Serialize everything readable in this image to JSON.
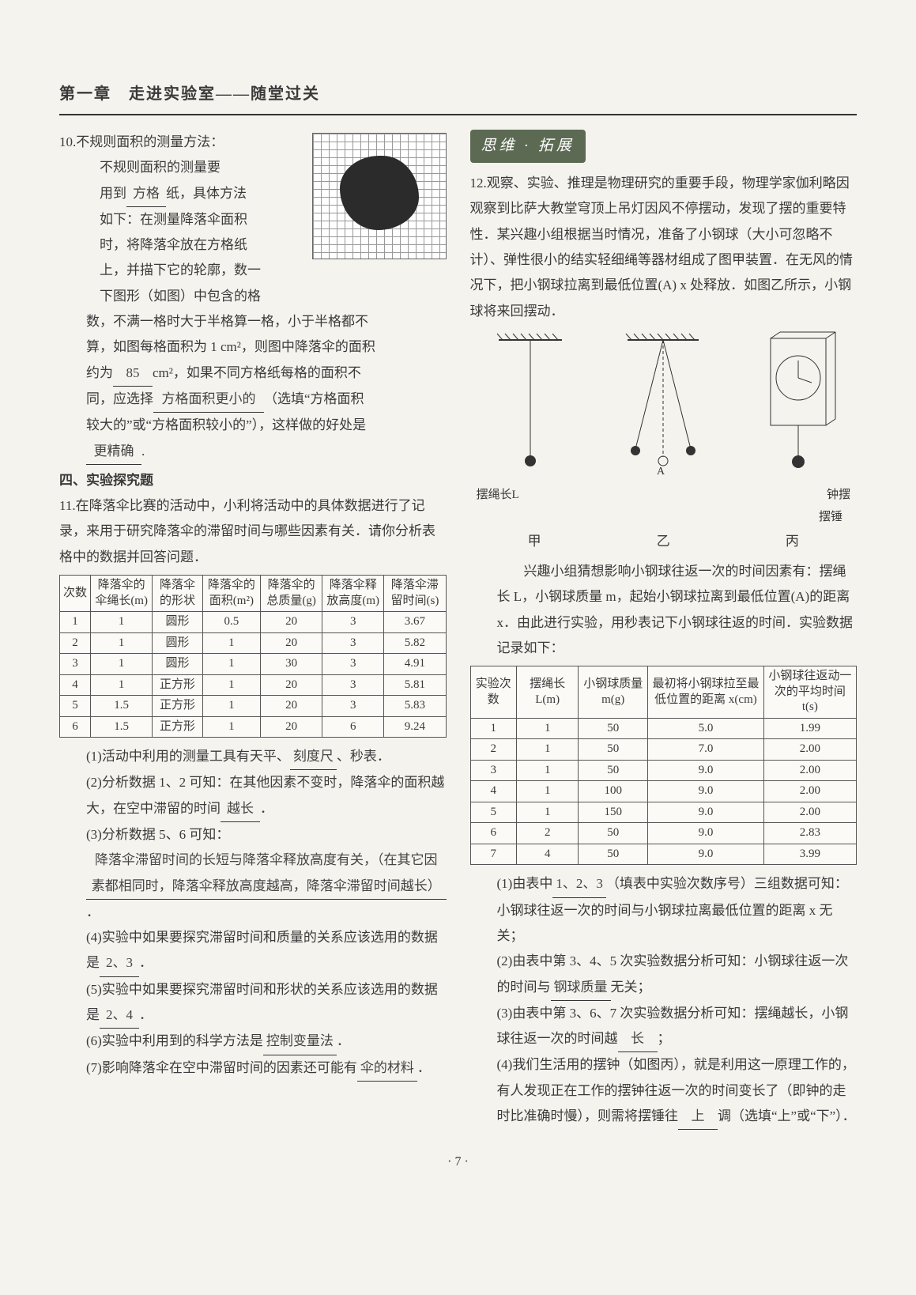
{
  "header": {
    "title": "第一章　走进实验室——随堂过关"
  },
  "colors": {
    "page_bg": "#f5f3ee",
    "text": "#3a3a3a",
    "rule": "#333333",
    "table_border": "#555555",
    "badge_bg": "#5c6a53",
    "badge_fg": "#ffffff",
    "grid_line": "#999999",
    "blob": "#2b2b2b"
  },
  "q10": {
    "num": "10.",
    "title": "不规则面积的测量方法：",
    "lines": [
      "不规则面积的测量要",
      "用到",
      "方格",
      "纸，具体方法",
      "如下：在测量降落伞面积",
      "时，将降落伞放在方格纸",
      "上，并描下它的轮廓，数一",
      "下图形（如图）中包含的格"
    ],
    "after": [
      "数，不满一格时大于半格算一格，小于半格都不",
      "算，如图每格面积为 1 cm²，则图中降落伞的面积",
      "约为",
      "85",
      "cm²，如果不同方格纸每格的面积不",
      "同，应选择",
      "方格面积更小的",
      "（选填“方格面积",
      "较大的”或“方格面积较小的”），这样做的好处是",
      "",
      "更精确",
      "."
    ]
  },
  "sec4": "四、实验探究题",
  "q11": {
    "num": "11.",
    "intro": "在降落伞比赛的活动中，小利将活动中的具体数据进行了记录，来用于研究降落伞的滞留时间与哪些因素有关．请你分析表格中的数据并回答问题．",
    "table": {
      "headers": [
        "次数",
        "降落伞的伞绳长(m)",
        "降落伞的形状",
        "降落伞的面积(m²)",
        "降落伞的总质量(g)",
        "降落伞释放高度(m)",
        "降落伞滞留时间(s)"
      ],
      "rows": [
        [
          "1",
          "1",
          "圆形",
          "0.5",
          "20",
          "3",
          "3.67"
        ],
        [
          "2",
          "1",
          "圆形",
          "1",
          "20",
          "3",
          "5.82"
        ],
        [
          "3",
          "1",
          "圆形",
          "1",
          "30",
          "3",
          "4.91"
        ],
        [
          "4",
          "1",
          "正方形",
          "1",
          "20",
          "3",
          "5.81"
        ],
        [
          "5",
          "1.5",
          "正方形",
          "1",
          "20",
          "3",
          "5.83"
        ],
        [
          "6",
          "1.5",
          "正方形",
          "1",
          "20",
          "6",
          "9.24"
        ]
      ],
      "col_widths_pct": [
        8,
        16,
        13,
        15,
        16,
        16,
        16
      ],
      "font_size_pt": 11
    },
    "subs": [
      {
        "n": "(1)",
        "pre": "活动中利用的测量工具有天平、",
        "blank": "刻度尺",
        "post": "、秒表．"
      },
      {
        "n": "(2)",
        "pre": "分析数据 1、2 可知：在其他因素不变时，降落伞的面积越大，在空中滞留的时间",
        "blank": "越长",
        "post": "．"
      },
      {
        "n": "(3)",
        "pre": "分析数据 5、6 可知：",
        "blank": "降落伞滞留时间的长短与降落伞释放高度有关，（在其它因素都相同时，降落伞释放高度越高，降落伞滞留时间越长）",
        "post": "．"
      },
      {
        "n": "(4)",
        "pre": "实验中如果要探究滞留时间和质量的关系应该选用的数据是",
        "blank": "2、3",
        "post": "．"
      },
      {
        "n": "(5)",
        "pre": "实验中如果要探究滞留时间和形状的关系应该选用的数据是",
        "blank": "2、4",
        "post": "．"
      },
      {
        "n": "(6)",
        "pre": "实验中利用到的科学方法是",
        "blank": "控制变量法",
        "post": "．"
      },
      {
        "n": "(7)",
        "pre": "影响降落伞在空中滞留时间的因素还可能有",
        "blank": "伞的材料",
        "post": "．"
      }
    ]
  },
  "badge": "思维 · 拓展",
  "q12": {
    "num": "12.",
    "intro": "观察、实验、推理是物理研究的重要手段，物理学家伽利略因观察到比萨大教堂穹顶上吊灯因风不停摆动，发现了摆的重要特性．某兴趣小组根据当时情况，准备了小钢球（大小可忽略不计）、弹性很小的结实轻细绳等器材组成了图甲装置．在无风的情况下，把小钢球拉离到最低位置(A) x 处释放．如图乙所示，小钢球将来回摆动．",
    "fig_labels": {
      "ropeL": "摆绳长L",
      "A": "A",
      "clock": "钟摆",
      "weight": "摆锤"
    },
    "captions": [
      "甲",
      "乙",
      "丙"
    ],
    "mid": "兴趣小组猜想影响小钢球往返一次的时间因素有：摆绳长 L，小钢球质量 m，起始小钢球拉离到最低位置(A)的距离 x．由此进行实验，用秒表记下小钢球往返的时间．实验数据记录如下：",
    "table": {
      "headers": [
        "实验次数",
        "摆绳长 L(m)",
        "小钢球质量 m(g)",
        "最初将小钢球拉至最低位置的距离 x(cm)",
        "小钢球往返动一次的平均时间 t(s)"
      ],
      "rows": [
        [
          "1",
          "1",
          "50",
          "5.0",
          "1.99"
        ],
        [
          "2",
          "1",
          "50",
          "7.0",
          "2.00"
        ],
        [
          "3",
          "1",
          "50",
          "9.0",
          "2.00"
        ],
        [
          "4",
          "1",
          "100",
          "9.0",
          "2.00"
        ],
        [
          "5",
          "1",
          "150",
          "9.0",
          "2.00"
        ],
        [
          "6",
          "2",
          "50",
          "9.0",
          "2.83"
        ],
        [
          "7",
          "4",
          "50",
          "9.0",
          "3.99"
        ]
      ],
      "col_widths_pct": [
        12,
        16,
        18,
        30,
        24
      ],
      "font_size_pt": 11
    },
    "subs": [
      {
        "n": "(1)",
        "pre": "由表中",
        "blank": "1、2、3",
        "post": "（填表中实验次数序号）三组数据可知：小钢球往返一次的时间与小钢球拉离最低位置的距离 x 无关；"
      },
      {
        "n": "(2)",
        "pre": "由表中第 3、4、5 次实验数据分析可知：小钢球往返一次的时间与",
        "blank": "钢球质量",
        "post": "无关；"
      },
      {
        "n": "(3)",
        "pre": "由表中第 3、6、7 次实验数据分析可知：摆绳越长，小钢球往返一次的时间越",
        "blank": "长",
        "post": "；"
      },
      {
        "n": "(4)",
        "pre": "我们生活用的摆钟（如图丙），就是利用这一原理工作的，有人发现正在工作的摆钟往返一次的时间变长了（即钟的走时比准确时慢），则需将摆锤往",
        "blank": "上",
        "post": "调（选填“上”或“下”）．"
      }
    ]
  },
  "footer": "· 7 ·"
}
